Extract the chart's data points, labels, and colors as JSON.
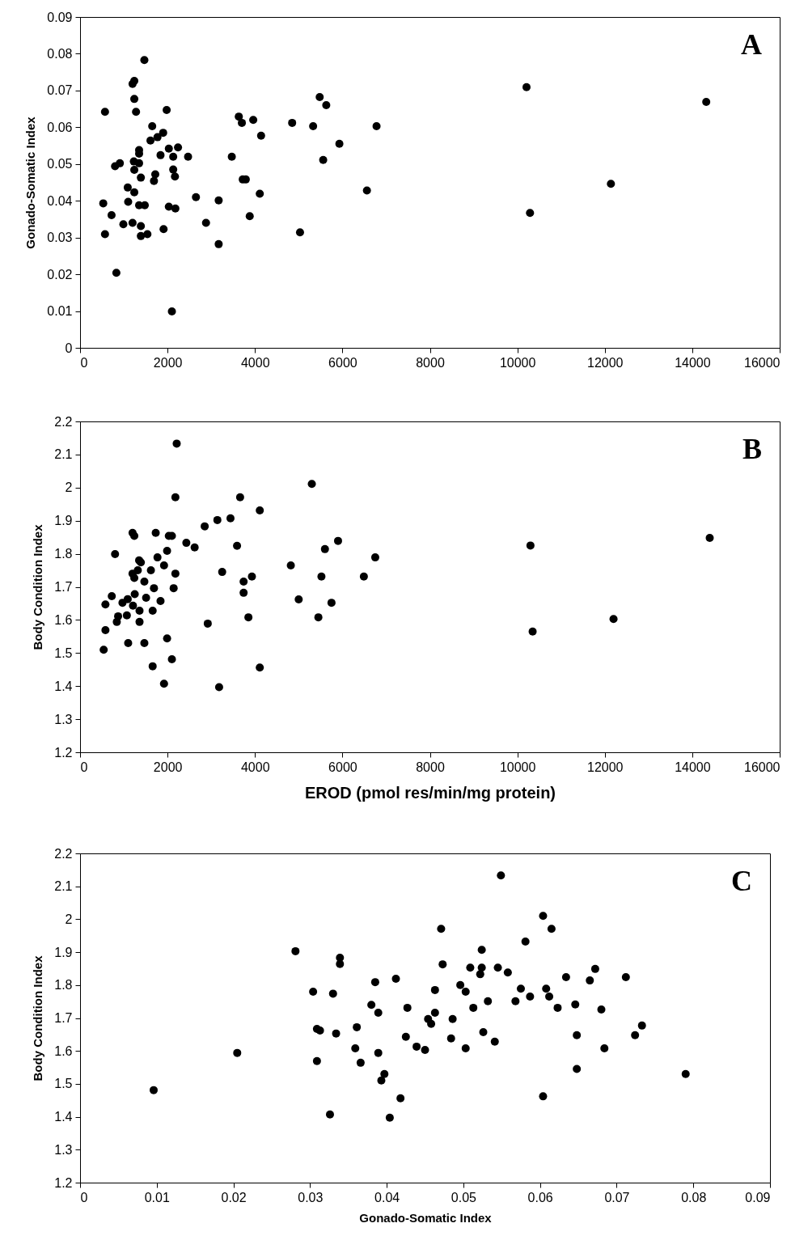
{
  "chart_data": [
    {
      "type": "scatter",
      "ylabel": "Gonado-Somatic Index",
      "annotations": [
        "A"
      ],
      "marker": "circle",
      "grid": false,
      "xlim": [
        0,
        16000
      ],
      "xticks": [
        0,
        2000,
        4000,
        6000,
        8000,
        10000,
        12000,
        14000,
        16000
      ],
      "ylim": [
        0,
        0.09
      ],
      "yticks": [
        0,
        0.01,
        0.02,
        0.03,
        0.04,
        0.05,
        0.06,
        0.07,
        0.08,
        0.09
      ],
      "series": [
        {
          "color": "#000000",
          "x": [
            1470,
            1240,
            1200,
            1240,
            570,
            1280,
            1980,
            1650,
            1900,
            1770,
            1610,
            1350,
            1350,
            2030,
            2240,
            1840,
            2130,
            2470,
            910,
            800,
            1230,
            1350,
            1240,
            1390,
            1720,
            1690,
            2130,
            2170,
            1090,
            1240,
            530,
            1100,
            1350,
            1480,
            2030,
            2180,
            2650,
            3170,
            720,
            990,
            1200,
            1390,
            1910,
            570,
            1390,
            1540,
            2880,
            3170,
            830,
            2100,
            3630,
            3700,
            3960,
            4140,
            3470,
            3720,
            3790,
            4110,
            3880,
            4850,
            5330,
            5480,
            5630,
            5930,
            5560,
            5030,
            6780,
            6560,
            10210,
            14320,
            12140,
            10290
          ],
          "values": [
            0.0783,
            0.0726,
            0.0718,
            0.0677,
            0.0642,
            0.0642,
            0.0647,
            0.0603,
            0.0585,
            0.0573,
            0.0564,
            0.0538,
            0.0528,
            0.0542,
            0.0545,
            0.0524,
            0.052,
            0.052,
            0.0502,
            0.0494,
            0.0507,
            0.0502,
            0.0484,
            0.0463,
            0.0472,
            0.0454,
            0.0485,
            0.0466,
            0.0436,
            0.0423,
            0.0393,
            0.0397,
            0.0388,
            0.0388,
            0.0384,
            0.0379,
            0.041,
            0.0401,
            0.0361,
            0.0336,
            0.034,
            0.0331,
            0.0323,
            0.0309,
            0.0304,
            0.0309,
            0.034,
            0.0282,
            0.0204,
            0.0099,
            0.0629,
            0.0612,
            0.062,
            0.0577,
            0.052,
            0.0458,
            0.0458,
            0.0419,
            0.0358,
            0.0612,
            0.0603,
            0.0682,
            0.066,
            0.0555,
            0.0511,
            0.0314,
            0.0603,
            0.0428,
            0.0709,
            0.0669,
            0.0446,
            0.0367
          ]
        }
      ]
    },
    {
      "type": "scatter",
      "xlabel": "EROD (pmol res/min/mg protein)",
      "ylabel": "Body Condition Index",
      "annotations": [
        "B"
      ],
      "marker": "circle",
      "grid": false,
      "xlim": [
        0,
        16000
      ],
      "xticks": [
        0,
        2000,
        4000,
        6000,
        8000,
        10000,
        12000,
        14000,
        16000
      ],
      "ylim": [
        1.2,
        2.2
      ],
      "yticks": [
        1.2,
        1.3,
        1.4,
        1.5,
        1.6,
        1.7,
        1.8,
        1.9,
        2,
        2.1,
        2.2
      ],
      "series": [
        {
          "color": "#000000",
          "x": [
            2210,
            5300,
            2180,
            3660,
            4110,
            3440,
            3140,
            2850,
            1200,
            1240,
            1730,
            2030,
            2100,
            2430,
            2620,
            3590,
            5900,
            5600,
            800,
            1990,
            6750,
            1350,
            1390,
            1770,
            1920,
            4820,
            1620,
            1320,
            1200,
            1240,
            2180,
            3250,
            3930,
            3740,
            5520,
            6490,
            1470,
            1690,
            2140,
            3740,
            1250,
            725,
            1510,
            1090,
            970,
            1840,
            5000,
            5750,
            580,
            1210,
            1360,
            1660,
            870,
            1070,
            3850,
            5450,
            840,
            1360,
            2920,
            580,
            1990,
            540,
            1100,
            1470,
            1660,
            2100,
            1920,
            3180,
            4110,
            10300,
            10350,
            12200,
            14400
          ],
          "values": [
            2.133,
            2.011,
            1.971,
            1.971,
            1.931,
            1.907,
            1.902,
            1.883,
            1.863,
            1.854,
            1.863,
            1.854,
            1.854,
            1.833,
            1.819,
            1.824,
            1.839,
            1.814,
            1.799,
            1.809,
            1.789,
            1.78,
            1.774,
            1.789,
            1.765,
            1.765,
            1.75,
            1.75,
            1.74,
            1.727,
            1.74,
            1.745,
            1.731,
            1.716,
            1.731,
            1.731,
            1.716,
            1.696,
            1.696,
            1.682,
            1.678,
            1.672,
            1.667,
            1.663,
            1.652,
            1.657,
            1.662,
            1.652,
            1.647,
            1.643,
            1.628,
            1.628,
            1.611,
            1.614,
            1.608,
            1.608,
            1.594,
            1.594,
            1.589,
            1.569,
            1.544,
            1.51,
            1.53,
            1.53,
            1.46,
            1.481,
            1.407,
            1.397,
            1.456,
            1.825,
            1.565,
            1.603,
            1.848
          ]
        }
      ]
    },
    {
      "type": "scatter",
      "xlabel": "Gonado-Somatic Index",
      "ylabel": "Body Condition Index",
      "annotations": [
        "C"
      ],
      "marker": "circle",
      "grid": false,
      "xlim": [
        0,
        0.09
      ],
      "xticks": [
        0,
        0.01,
        0.02,
        0.03,
        0.04,
        0.05,
        0.06,
        0.07,
        0.08,
        0.09
      ],
      "ylim": [
        1.2,
        2.2
      ],
      "yticks": [
        1.2,
        1.3,
        1.4,
        1.5,
        1.6,
        1.7,
        1.8,
        1.9,
        2,
        2.1,
        2.2
      ],
      "series": [
        {
          "color": "#000000",
          "x": [
            0.0549,
            0.0604,
            0.0615,
            0.0471,
            0.0581,
            0.0524,
            0.0281,
            0.0339,
            0.0339,
            0.0473,
            0.0509,
            0.0524,
            0.0522,
            0.0545,
            0.0558,
            0.0672,
            0.0665,
            0.0634,
            0.0712,
            0.0412,
            0.0385,
            0.0304,
            0.033,
            0.0463,
            0.0496,
            0.0503,
            0.0575,
            0.0608,
            0.0612,
            0.0587,
            0.0568,
            0.0532,
            0.0513,
            0.0623,
            0.0646,
            0.068,
            0.0427,
            0.038,
            0.0389,
            0.0463,
            0.0454,
            0.0458,
            0.0486,
            0.0733,
            0.0724,
            0.0648,
            0.0684,
            0.0648,
            0.0604,
            0.0526,
            0.0541,
            0.0503,
            0.0484,
            0.0425,
            0.0439,
            0.045,
            0.0361,
            0.0309,
            0.0313,
            0.0334,
            0.0359,
            0.0389,
            0.0309,
            0.0366,
            0.0397,
            0.0393,
            0.0418,
            0.0326,
            0.0404,
            0.079,
            0.0096,
            0.0205
          ],
          "values": [
            2.133,
            2.01,
            1.971,
            1.971,
            1.932,
            1.907,
            1.903,
            1.883,
            1.864,
            1.863,
            1.853,
            1.853,
            1.833,
            1.853,
            1.838,
            1.849,
            1.814,
            1.824,
            1.824,
            1.819,
            1.809,
            1.78,
            1.774,
            1.785,
            1.8,
            1.78,
            1.789,
            1.789,
            1.765,
            1.765,
            1.751,
            1.751,
            1.731,
            1.731,
            1.741,
            1.726,
            1.731,
            1.74,
            1.716,
            1.716,
            1.697,
            1.682,
            1.697,
            1.677,
            1.648,
            1.648,
            1.608,
            1.545,
            1.462,
            1.657,
            1.628,
            1.608,
            1.638,
            1.643,
            1.613,
            1.603,
            1.672,
            1.667,
            1.662,
            1.653,
            1.608,
            1.594,
            1.569,
            1.564,
            1.53,
            1.51,
            1.456,
            1.407,
            1.397,
            1.53,
            1.481,
            1.594
          ]
        }
      ]
    }
  ]
}
